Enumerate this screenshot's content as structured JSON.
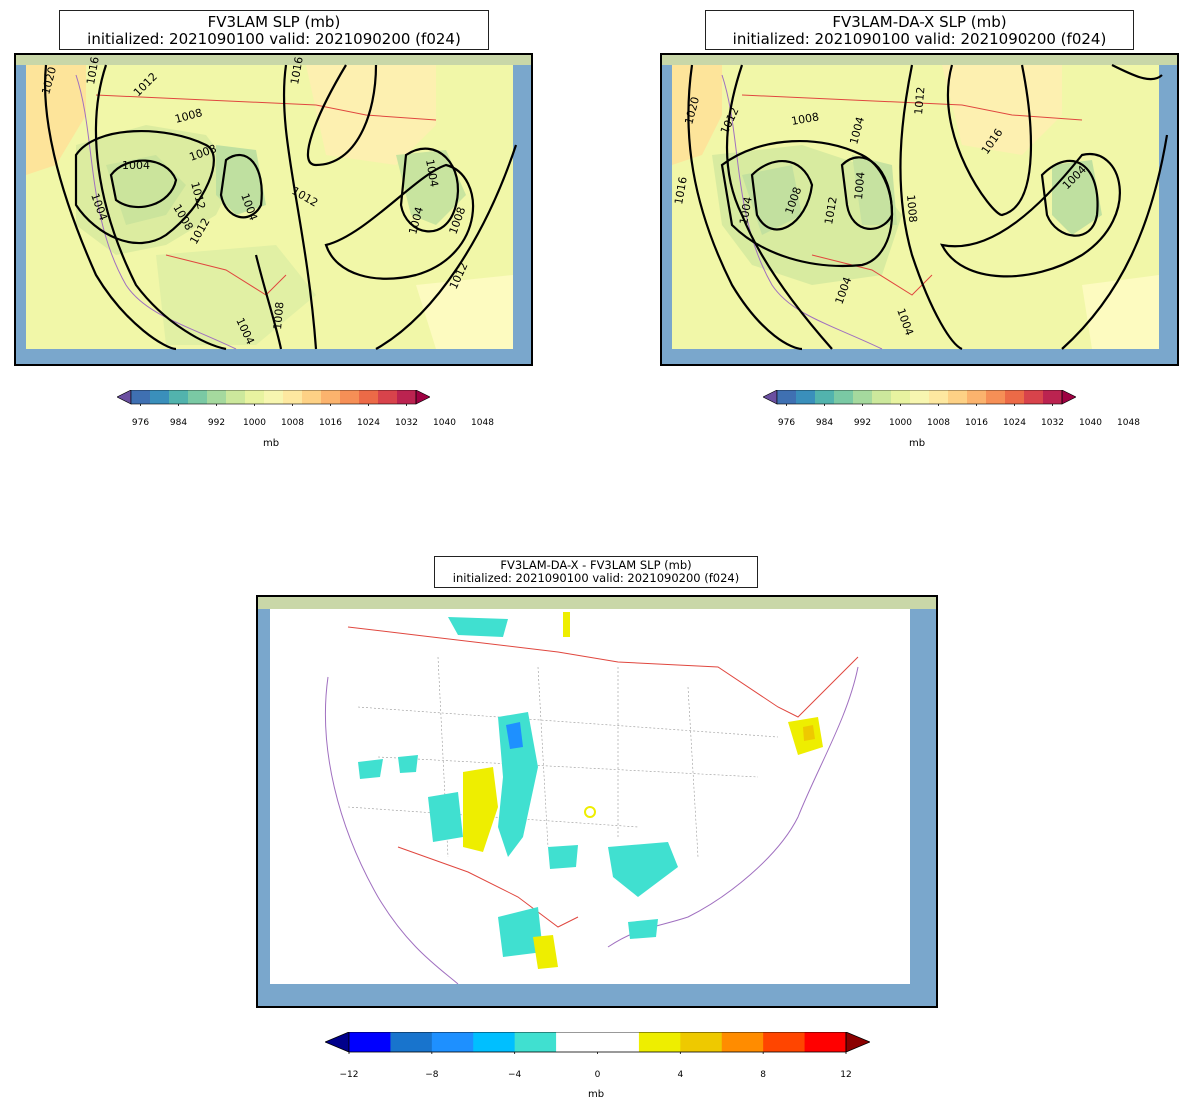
{
  "panels": [
    {
      "title_line1": "FV3LAM SLP (mb)",
      "title_line2": "initialized: 2021090100 valid: 2021090200 (f024)",
      "contour_labels": [
        "1020",
        "1016",
        "1012",
        "1008",
        "1004",
        "1008",
        "1004",
        "1012",
        "1004",
        "1008",
        "1012",
        "1016",
        "1012",
        "1004",
        "1004",
        "1008",
        "1012",
        "1004",
        "1008"
      ]
    },
    {
      "title_line1": "FV3LAM-DA-X SLP (mb)",
      "title_line2": "initialized: 2021090100 valid: 2021090200 (f024)",
      "contour_labels": [
        "1020",
        "1016",
        "1012",
        "1008",
        "1004",
        "1008",
        "1004",
        "1012",
        "1016",
        "1004",
        "1012",
        "1008",
        "1004",
        "1004",
        "1004"
      ]
    },
    {
      "title_line1": "FV3LAM-DA-X - FV3LAM SLP (mb)",
      "title_line2": "initialized: 2021090100 valid: 2021090200 (f024)"
    }
  ],
  "slp_colorbar": {
    "ticks": [
      "976",
      "984",
      "992",
      "1000",
      "1008",
      "1016",
      "1024",
      "1032",
      "1040",
      "1048"
    ],
    "unit": "mb",
    "colors": [
      "#6a4fa0",
      "#3f70b2",
      "#3a8fbb",
      "#52b3ad",
      "#7ac9a4",
      "#a5d99e",
      "#cce89c",
      "#e8f3a0",
      "#f7f6b0",
      "#fde8a0",
      "#fdd185",
      "#fbb36d",
      "#f68f56",
      "#ec6a47",
      "#d8434b",
      "#bb2350",
      "#9e0142"
    ]
  },
  "diff_colorbar": {
    "ticks": [
      "−12",
      "−8",
      "−4",
      "0",
      "4",
      "8",
      "12"
    ],
    "unit": "mb",
    "colors": [
      "#0000ff",
      "#1874cd",
      "#1e90ff",
      "#00bfff",
      "#40e0d0",
      "#ffffff",
      "#ffffff",
      "#eeee00",
      "#eec900",
      "#ff8c00",
      "#ff4500",
      "#ff0000"
    ],
    "extend_min": "#00008b",
    "extend_max": "#8b0000"
  }
}
